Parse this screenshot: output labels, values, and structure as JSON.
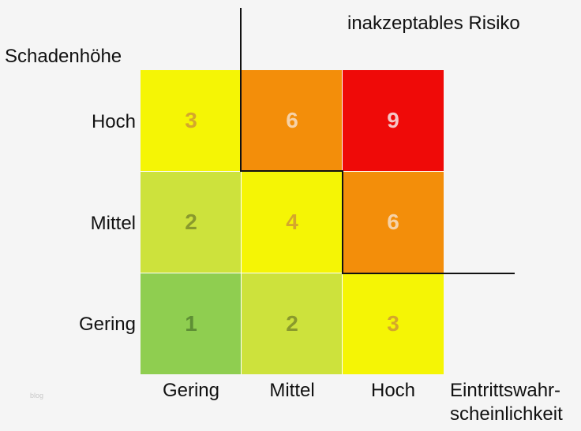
{
  "title": "inakzeptables Risiko",
  "y_axis_label": "Schadenhöhe",
  "x_axis_label_line1": "Eintrittswahr-",
  "x_axis_label_line2": "scheinlichkeit",
  "rows": [
    "Hoch",
    "Mittel",
    "Gering"
  ],
  "cols": [
    "Gering",
    "Mittel",
    "Hoch"
  ],
  "matrix": [
    [
      {
        "value": "3",
        "bg": "#f5f505",
        "fg": "#d4a72c"
      },
      {
        "value": "6",
        "bg": "#f38e0a",
        "fg": "#f6d2a8"
      },
      {
        "value": "9",
        "bg": "#ef0a08",
        "fg": "#f5c6c6"
      }
    ],
    [
      {
        "value": "2",
        "bg": "#cde23c",
        "fg": "#8a9a2c"
      },
      {
        "value": "4",
        "bg": "#f5f505",
        "fg": "#d4a72c"
      },
      {
        "value": "6",
        "bg": "#f38e0a",
        "fg": "#f6d2a8"
      }
    ],
    [
      {
        "value": "1",
        "bg": "#8fce50",
        "fg": "#5e8f35"
      },
      {
        "value": "2",
        "bg": "#cde23c",
        "fg": "#8a9a2c"
      },
      {
        "value": "3",
        "bg": "#f5f505",
        "fg": "#d4a72c"
      }
    ]
  ],
  "watermark": "blog"
}
